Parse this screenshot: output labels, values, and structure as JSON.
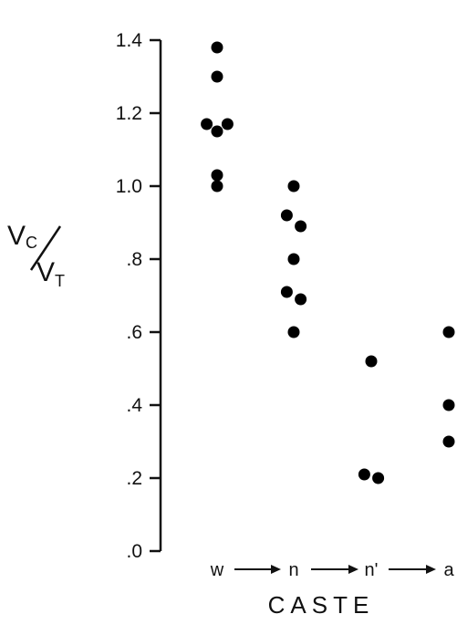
{
  "chart_data": {
    "type": "scatter",
    "title": "",
    "xlabel": "CASTE",
    "ylabel": {
      "numerator": "V",
      "numerator_sub": "C",
      "denominator": "V",
      "denominator_sub": "T"
    },
    "categories": [
      "w",
      "n",
      "n'",
      "a"
    ],
    "ylim": [
      0,
      1.4
    ],
    "yticks": [
      {
        "value": 0.0,
        "label": ".0"
      },
      {
        "value": 0.2,
        "label": ".2"
      },
      {
        "value": 0.4,
        "label": ".4"
      },
      {
        "value": 0.6,
        "label": ".6"
      },
      {
        "value": 0.8,
        "label": ".8"
      },
      {
        "value": 1.0,
        "label": "1.0"
      },
      {
        "value": 1.2,
        "label": "1.2"
      },
      {
        "value": 1.4,
        "label": "1.4"
      }
    ],
    "grid": false,
    "marker_color": "#000000",
    "points": [
      {
        "category": "w",
        "offset": 0,
        "y": 1.38
      },
      {
        "category": "w",
        "offset": 0,
        "y": 1.3
      },
      {
        "category": "w",
        "offset": -0.3,
        "y": 1.17
      },
      {
        "category": "w",
        "offset": 0.3,
        "y": 1.17
      },
      {
        "category": "w",
        "offset": 0,
        "y": 1.15
      },
      {
        "category": "w",
        "offset": 0,
        "y": 1.03
      },
      {
        "category": "w",
        "offset": 0,
        "y": 1.0
      },
      {
        "category": "n",
        "offset": 0,
        "y": 1.0
      },
      {
        "category": "n",
        "offset": -0.2,
        "y": 0.92
      },
      {
        "category": "n",
        "offset": 0.2,
        "y": 0.89
      },
      {
        "category": "n",
        "offset": 0,
        "y": 0.8
      },
      {
        "category": "n",
        "offset": -0.2,
        "y": 0.71
      },
      {
        "category": "n",
        "offset": 0.2,
        "y": 0.69
      },
      {
        "category": "n",
        "offset": 0,
        "y": 0.6
      },
      {
        "category": "n'",
        "offset": 0,
        "y": 0.52
      },
      {
        "category": "n'",
        "offset": -0.2,
        "y": 0.21
      },
      {
        "category": "n'",
        "offset": 0.2,
        "y": 0.2
      },
      {
        "category": "a",
        "offset": 0,
        "y": 0.6
      },
      {
        "category": "a",
        "offset": 0,
        "y": 0.4
      },
      {
        "category": "a",
        "offset": 0,
        "y": 0.3
      }
    ]
  }
}
